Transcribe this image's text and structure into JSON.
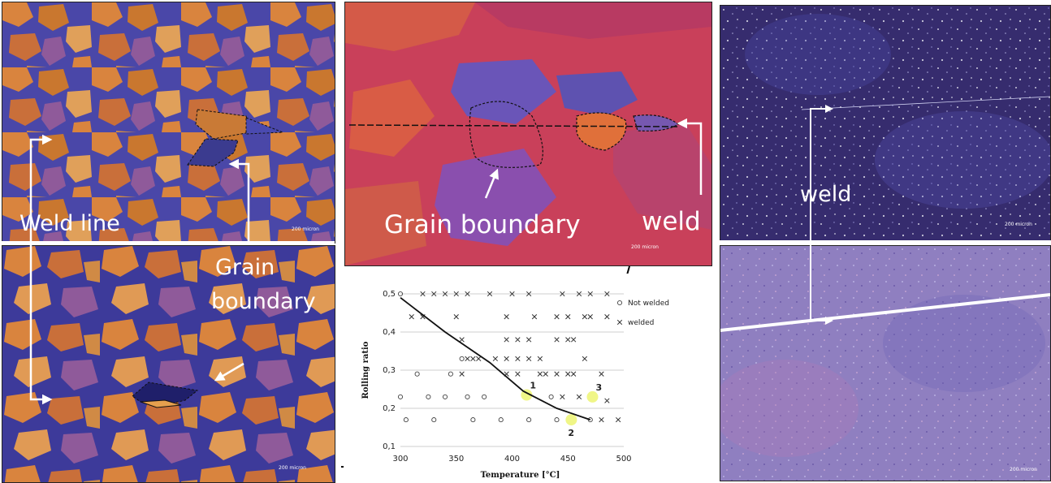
{
  "left_panel": {
    "weld_line_label": "Weld line",
    "grain_boundary_label_1": "Grain",
    "grain_boundary_label_2": "boundary",
    "scale_top": "200 micron",
    "scale_bottom": "200 micron"
  },
  "center_panel": {
    "grain_boundary_label": "Grain boundary",
    "weld_label": "weld",
    "scale": "200 micron"
  },
  "right_panel": {
    "weld_label": "weld",
    "scale_top": "200 micron",
    "scale_bottom": "200 micron"
  },
  "colors": {
    "orange_grain": "#d9843e",
    "blue_grain": "#4a47a8",
    "magenta_matrix": "#c9405a",
    "dark_purple": "#3a2f6e",
    "light_purple": "#8f7fc0",
    "highlight": "#eef57a"
  },
  "chart_data": {
    "type": "scatter",
    "xlabel": "Temperature [°C]",
    "ylabel": "Rolling ratio",
    "xlim": [
      300,
      500
    ],
    "ylim": [
      0.1,
      0.5
    ],
    "x_ticks": [
      "300",
      "350",
      "400",
      "450",
      "500"
    ],
    "y_ticks": [
      "0,1",
      "0,2",
      "0,3",
      "0,4",
      "0,5"
    ],
    "grid": "horizontal",
    "legend_position": "top-right",
    "series": [
      {
        "name": "Not welded",
        "marker": "o",
        "points": [
          [
            300,
            0.5
          ],
          [
            300,
            0.23
          ],
          [
            305,
            0.17
          ],
          [
            315,
            0.29
          ],
          [
            325,
            0.23
          ],
          [
            330,
            0.17
          ],
          [
            340,
            0.23
          ],
          [
            345,
            0.29
          ],
          [
            355,
            0.33
          ],
          [
            360,
            0.23
          ],
          [
            365,
            0.17
          ],
          [
            375,
            0.23
          ],
          [
            390,
            0.17
          ],
          [
            415,
            0.17
          ],
          [
            435,
            0.23
          ],
          [
            440,
            0.17
          ],
          [
            470,
            0.17
          ]
        ]
      },
      {
        "name": "welded",
        "marker": "x",
        "points": [
          [
            320,
            0.5
          ],
          [
            330,
            0.5
          ],
          [
            340,
            0.5
          ],
          [
            350,
            0.5
          ],
          [
            360,
            0.5
          ],
          [
            380,
            0.5
          ],
          [
            400,
            0.5
          ],
          [
            415,
            0.5
          ],
          [
            445,
            0.5
          ],
          [
            460,
            0.5
          ],
          [
            470,
            0.5
          ],
          [
            485,
            0.5
          ],
          [
            310,
            0.44
          ],
          [
            320,
            0.44
          ],
          [
            350,
            0.44
          ],
          [
            395,
            0.44
          ],
          [
            420,
            0.44
          ],
          [
            440,
            0.44
          ],
          [
            450,
            0.44
          ],
          [
            465,
            0.44
          ],
          [
            470,
            0.44
          ],
          [
            485,
            0.44
          ],
          [
            355,
            0.38
          ],
          [
            395,
            0.38
          ],
          [
            405,
            0.38
          ],
          [
            415,
            0.38
          ],
          [
            440,
            0.38
          ],
          [
            450,
            0.38
          ],
          [
            455,
            0.38
          ],
          [
            360,
            0.33
          ],
          [
            365,
            0.33
          ],
          [
            370,
            0.33
          ],
          [
            385,
            0.33
          ],
          [
            395,
            0.33
          ],
          [
            405,
            0.33
          ],
          [
            415,
            0.33
          ],
          [
            425,
            0.33
          ],
          [
            465,
            0.33
          ],
          [
            355,
            0.29
          ],
          [
            395,
            0.29
          ],
          [
            405,
            0.29
          ],
          [
            425,
            0.29
          ],
          [
            430,
            0.29
          ],
          [
            440,
            0.29
          ],
          [
            450,
            0.29
          ],
          [
            455,
            0.29
          ],
          [
            480,
            0.29
          ],
          [
            445,
            0.23
          ],
          [
            460,
            0.23
          ],
          [
            485,
            0.22
          ],
          [
            480,
            0.17
          ],
          [
            495,
            0.17
          ]
        ]
      }
    ],
    "highlighted_points": [
      {
        "label": "1",
        "x": 413,
        "y": 0.235
      },
      {
        "label": "2",
        "x": 453,
        "y": 0.17
      },
      {
        "label": "3",
        "x": 472,
        "y": 0.23
      }
    ],
    "boundary_curve": [
      [
        300,
        0.49
      ],
      [
        340,
        0.4
      ],
      [
        380,
        0.32
      ],
      [
        410,
        0.245
      ],
      [
        440,
        0.2
      ],
      [
        470,
        0.17
      ]
    ]
  }
}
